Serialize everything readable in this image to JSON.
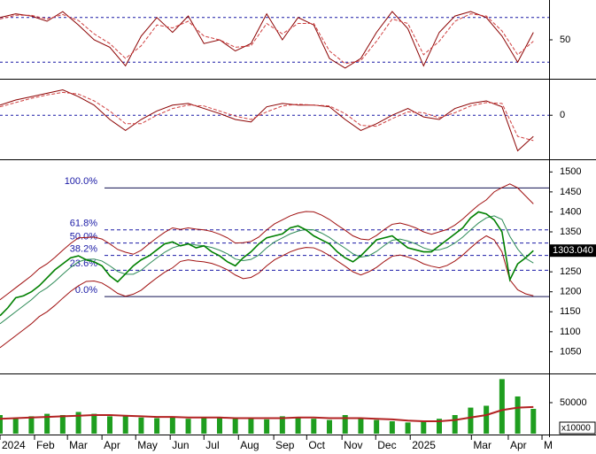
{
  "chart_data": [
    {
      "type": "line",
      "xlim": [
        0,
        70
      ],
      "ylim": [
        0,
        100
      ],
      "yticks": [
        50
      ],
      "hlines": [
        80,
        20
      ],
      "x": [
        0,
        2,
        4,
        6,
        8,
        10,
        12,
        14,
        16,
        18,
        20,
        22,
        24,
        26,
        28,
        30,
        32,
        34,
        36,
        38,
        40,
        42,
        44,
        46,
        48,
        50,
        52,
        54,
        56,
        58,
        60,
        62,
        64,
        66,
        68
      ],
      "series": [
        {
          "color": "#8b0000",
          "dash": false,
          "values": [
            80,
            85,
            82,
            75,
            88,
            70,
            50,
            40,
            15,
            55,
            80,
            60,
            82,
            45,
            50,
            35,
            45,
            85,
            50,
            80,
            70,
            25,
            12,
            25,
            60,
            88,
            65,
            15,
            60,
            82,
            88,
            80,
            55,
            20,
            60
          ]
        },
        {
          "color": "#d04040",
          "dash": true,
          "values": [
            78,
            83,
            83,
            78,
            84,
            76,
            58,
            45,
            25,
            42,
            70,
            66,
            75,
            55,
            50,
            40,
            42,
            72,
            58,
            72,
            72,
            35,
            18,
            22,
            48,
            78,
            72,
            30,
            48,
            75,
            85,
            82,
            62,
            30,
            48
          ]
        }
      ]
    },
    {
      "type": "line",
      "xlim": [
        0,
        70
      ],
      "ylim": [
        -50,
        40
      ],
      "yticks": [
        0
      ],
      "hlines": [
        0
      ],
      "x": [
        0,
        2,
        4,
        6,
        8,
        10,
        12,
        14,
        16,
        18,
        20,
        22,
        24,
        26,
        28,
        30,
        32,
        34,
        36,
        38,
        40,
        42,
        44,
        46,
        48,
        50,
        52,
        54,
        56,
        58,
        60,
        62,
        64,
        66,
        68
      ],
      "series": [
        {
          "color": "#8b0000",
          "dash": false,
          "values": [
            12,
            18,
            22,
            26,
            30,
            22,
            12,
            -5,
            -18,
            -5,
            5,
            12,
            14,
            8,
            2,
            -5,
            -8,
            10,
            14,
            12,
            12,
            10,
            -5,
            -18,
            -10,
            0,
            8,
            -2,
            -5,
            8,
            14,
            17,
            10,
            -42,
            -25
          ]
        },
        {
          "color": "#d04040",
          "dash": true,
          "values": [
            10,
            15,
            20,
            24,
            27,
            25,
            17,
            5,
            -10,
            -10,
            0,
            8,
            12,
            11,
            5,
            -1,
            -5,
            4,
            11,
            13,
            12,
            11,
            2,
            -12,
            -13,
            -4,
            4,
            3,
            -3,
            3,
            11,
            15,
            14,
            -25,
            -30
          ]
        }
      ]
    },
    {
      "type": "line",
      "xlim": [
        0,
        70
      ],
      "ylim": [
        1000,
        1525
      ],
      "yticks": [
        1050,
        1100,
        1150,
        1200,
        1250,
        1350,
        1400,
        1450,
        1500
      ],
      "fib_levels": [
        {
          "label": "100.0%",
          "value": 1460
        },
        {
          "label": "61.8%",
          "value": 1355
        },
        {
          "label": "50.0%",
          "value": 1322
        },
        {
          "label": "38.2%",
          "value": 1291
        },
        {
          "label": "23.6%",
          "value": 1254
        },
        {
          "label": "0.0%",
          "value": 1188
        }
      ],
      "last_label": "1303.040",
      "x": [
        0,
        1,
        2,
        3,
        4,
        5,
        6,
        7,
        8,
        9,
        10,
        11,
        12,
        13,
        14,
        15,
        16,
        17,
        18,
        19,
        20,
        21,
        22,
        23,
        24,
        25,
        26,
        27,
        28,
        29,
        30,
        31,
        32,
        33,
        34,
        35,
        36,
        37,
        38,
        39,
        40,
        41,
        42,
        43,
        44,
        45,
        46,
        47,
        48,
        49,
        50,
        51,
        52,
        53,
        54,
        55,
        56,
        57,
        58,
        59,
        60,
        61,
        62,
        63,
        64,
        65,
        66,
        67,
        68
      ],
      "series": [
        {
          "color": "#a01010",
          "width": 1,
          "values": [
            1180,
            1195,
            1210,
            1225,
            1240,
            1258,
            1270,
            1286,
            1304,
            1321,
            1335,
            1336,
            1337,
            1332,
            1320,
            1306,
            1299,
            1294,
            1304,
            1320,
            1335,
            1349,
            1360,
            1356,
            1360,
            1357,
            1355,
            1351,
            1344,
            1335,
            1322,
            1323,
            1326,
            1337,
            1355,
            1370,
            1380,
            1390,
            1397,
            1401,
            1400,
            1392,
            1381,
            1367,
            1354,
            1340,
            1332,
            1330,
            1341,
            1356,
            1369,
            1372,
            1367,
            1360,
            1350,
            1344,
            1350,
            1356,
            1367,
            1382,
            1400,
            1417,
            1430,
            1450,
            1461,
            1470,
            1460,
            1440,
            1420
          ]
        },
        {
          "color": "#a01010",
          "width": 1,
          "values": [
            1060,
            1075,
            1090,
            1105,
            1120,
            1138,
            1150,
            1166,
            1184,
            1201,
            1215,
            1226,
            1227,
            1222,
            1210,
            1196,
            1189,
            1194,
            1204,
            1220,
            1235,
            1249,
            1260,
            1276,
            1280,
            1277,
            1275,
            1271,
            1264,
            1255,
            1242,
            1233,
            1236,
            1247,
            1265,
            1280,
            1290,
            1300,
            1307,
            1311,
            1310,
            1302,
            1291,
            1277,
            1264,
            1250,
            1242,
            1250,
            1261,
            1276,
            1289,
            1292,
            1287,
            1280,
            1270,
            1264,
            1260,
            1266,
            1277,
            1292,
            1310,
            1327,
            1340,
            1330,
            1300,
            1230,
            1205,
            1195,
            1190
          ]
        },
        {
          "color": "#2e8b57",
          "width": 1,
          "values": [
            1120,
            1135,
            1150,
            1165,
            1180,
            1198,
            1210,
            1226,
            1244,
            1261,
            1275,
            1281,
            1282,
            1277,
            1265,
            1251,
            1244,
            1244,
            1254,
            1270,
            1285,
            1299,
            1310,
            1316,
            1320,
            1317,
            1315,
            1311,
            1304,
            1295,
            1282,
            1278,
            1281,
            1292,
            1310,
            1325,
            1335,
            1345,
            1352,
            1356,
            1355,
            1347,
            1336,
            1322,
            1309,
            1295,
            1287,
            1290,
            1301,
            1316,
            1329,
            1332,
            1327,
            1320,
            1310,
            1304,
            1305,
            1311,
            1322,
            1337,
            1355,
            1372,
            1385,
            1390,
            1381,
            1339,
            1307,
            1284,
            1272
          ]
        },
        {
          "color": "#008000",
          "width": 1.6,
          "values": [
            1140,
            1160,
            1185,
            1190,
            1200,
            1215,
            1235,
            1255,
            1270,
            1285,
            1290,
            1280,
            1275,
            1265,
            1240,
            1225,
            1245,
            1265,
            1280,
            1290,
            1305,
            1320,
            1325,
            1315,
            1320,
            1310,
            1315,
            1300,
            1290,
            1275,
            1265,
            1285,
            1300,
            1320,
            1335,
            1340,
            1345,
            1360,
            1365,
            1355,
            1340,
            1330,
            1320,
            1300,
            1285,
            1275,
            1290,
            1310,
            1330,
            1335,
            1340,
            1325,
            1310,
            1305,
            1300,
            1300,
            1315,
            1330,
            1345,
            1360,
            1385,
            1400,
            1395,
            1380,
            1350,
            1230,
            1270,
            1285,
            1303.04
          ]
        }
      ]
    },
    {
      "type": "bar",
      "xlim": [
        0,
        70
      ],
      "ylim": [
        0,
        92800
      ],
      "yticks": [
        50000
      ],
      "unit_label": "x10000",
      "color": "#1f9e1f",
      "x": [
        0,
        2,
        4,
        6,
        8,
        10,
        12,
        14,
        16,
        18,
        20,
        22,
        24,
        26,
        28,
        30,
        32,
        34,
        36,
        38,
        40,
        42,
        44,
        46,
        48,
        50,
        52,
        54,
        56,
        58,
        60,
        62,
        64,
        66,
        68
      ],
      "values": [
        30000,
        25000,
        28000,
        32000,
        30000,
        35000,
        32000,
        28000,
        30000,
        26000,
        25000,
        27000,
        24000,
        25000,
        26000,
        24000,
        25000,
        23000,
        28000,
        26000,
        24000,
        22000,
        30000,
        24000,
        22000,
        20000,
        18000,
        20000,
        24000,
        30000,
        42000,
        45000,
        88000,
        60000,
        40000
      ],
      "ma": {
        "color": "#b22222",
        "values": [
          24000,
          25000,
          26000,
          27000,
          28000,
          29000,
          30000,
          30000,
          29000,
          28000,
          27000,
          27000,
          26000,
          26000,
          26000,
          25000,
          25000,
          25000,
          25000,
          26000,
          26000,
          25000,
          25000,
          25000,
          24000,
          23000,
          21000,
          20000,
          20000,
          22000,
          26000,
          30000,
          38000,
          42000,
          43000
        ]
      },
      "xticks": [
        {
          "value": 0,
          "label": "2024"
        },
        {
          "value": 4.4,
          "label": "Feb"
        },
        {
          "value": 8.6,
          "label": "Mar"
        },
        {
          "value": 13,
          "label": "Apr"
        },
        {
          "value": 17.3,
          "label": "May"
        },
        {
          "value": 21.7,
          "label": "Jun"
        },
        {
          "value": 26,
          "label": "Jul"
        },
        {
          "value": 30.4,
          "label": "Aug"
        },
        {
          "value": 34.9,
          "label": "Sep"
        },
        {
          "value": 39.1,
          "label": "Oct"
        },
        {
          "value": 43.6,
          "label": "Nov"
        },
        {
          "value": 47.9,
          "label": "Dec"
        },
        {
          "value": 52.3,
          "label": "2025"
        },
        {
          "value": 60.1,
          "label": "Mar"
        },
        {
          "value": 64.8,
          "label": "Apr"
        },
        {
          "value": 69.1,
          "label": "M"
        }
      ]
    }
  ]
}
